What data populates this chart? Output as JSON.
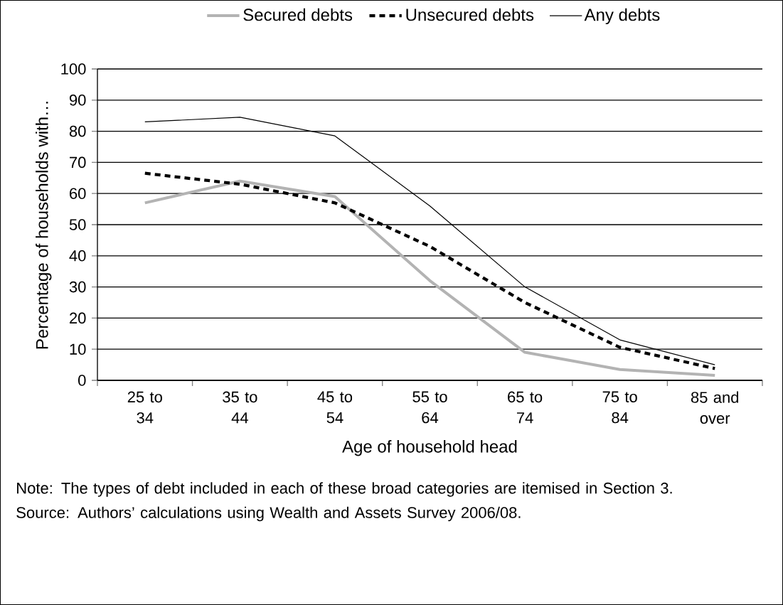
{
  "chart_data": {
    "type": "line",
    "categories": [
      "25 to 34",
      "35 to 44",
      "45 to 54",
      "55 to 64",
      "65 to 74",
      "75 to 84",
      "85 and over"
    ],
    "series": [
      {
        "name": "Secured debts",
        "color": "#b3b3b3",
        "line_style": "solid",
        "values": [
          57,
          64,
          59,
          32,
          9,
          3.5,
          1.6
        ]
      },
      {
        "name": "Unsecured debts",
        "color": "#000000",
        "line_style": "dashed",
        "values": [
          66.5,
          63,
          57,
          43,
          25,
          10.6,
          3.8
        ]
      },
      {
        "name": "Any debts",
        "color": "#000000",
        "line_style": "solid",
        "values": [
          83,
          84.5,
          78.5,
          56,
          30,
          13,
          5
        ]
      }
    ],
    "xlabel": "Age of household head",
    "ylabel": "Percentage of households with…",
    "ylim": [
      0,
      100
    ],
    "yticks": [
      0,
      10,
      20,
      30,
      40,
      50,
      60,
      70,
      80,
      90,
      100
    ],
    "grid": "y",
    "legend": "top",
    "annotations": [
      "Note: The types of debt included in each of these broad categories are itemised in Section 3.",
      "Source: Authors’ calculations using Wealth and Assets Survey 2006/08."
    ]
  }
}
